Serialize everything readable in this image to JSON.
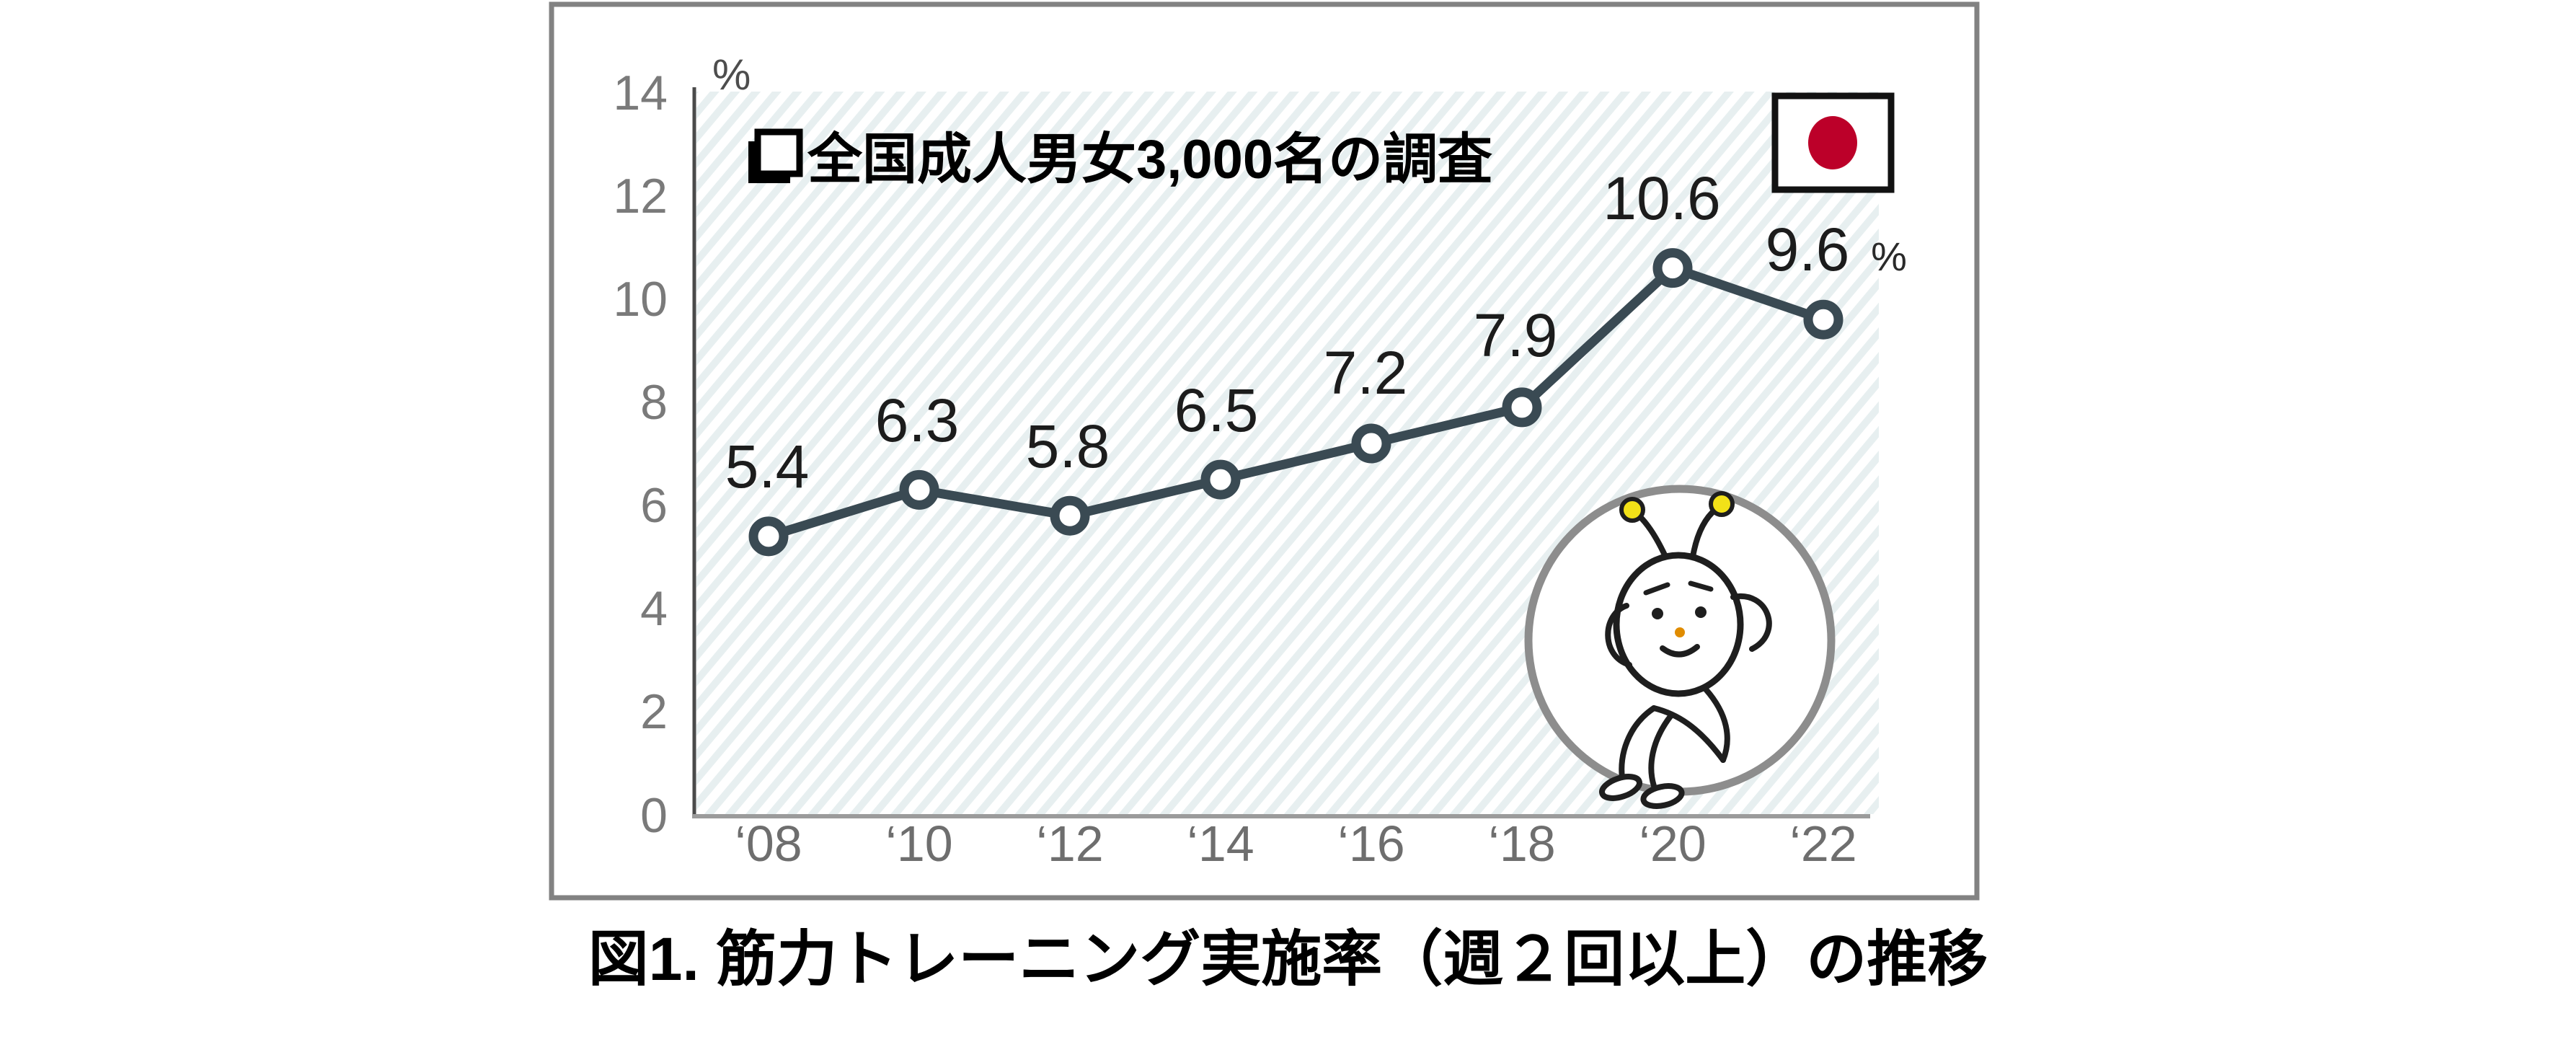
{
  "figure": {
    "caption": "図1. 筋力トレーニング実施率（週２回以上）の推移"
  },
  "chart": {
    "annotation": "全国成人男女3,000名の調査",
    "y_axis_unit": "%",
    "last_value_suffix": "%",
    "flag_red": "#bc0029",
    "stripe_color": "#e7eff0",
    "box_border_color": "#828282",
    "mascot": "sit-up-exercise-character"
  },
  "chart_data": {
    "type": "line",
    "title": "",
    "categories": [
      "‘08",
      "‘10",
      "‘12",
      "‘14",
      "‘16",
      "‘18",
      "‘20",
      "‘22"
    ],
    "values": [
      5.4,
      6.3,
      5.8,
      6.5,
      7.2,
      7.9,
      10.6,
      9.6
    ],
    "labels": [
      "5.4",
      "6.3",
      "5.8",
      "6.5",
      "7.2",
      "7.9",
      "10.6",
      "9.6"
    ],
    "y_ticks": [
      "14",
      "12",
      "10",
      "8",
      "6",
      "4",
      "2",
      "0"
    ],
    "xlabel": "",
    "ylabel": "%",
    "ylim": [
      0,
      14
    ],
    "grid": false,
    "legend": false,
    "line_color": "#3a4a53",
    "marker": "open-circle"
  }
}
